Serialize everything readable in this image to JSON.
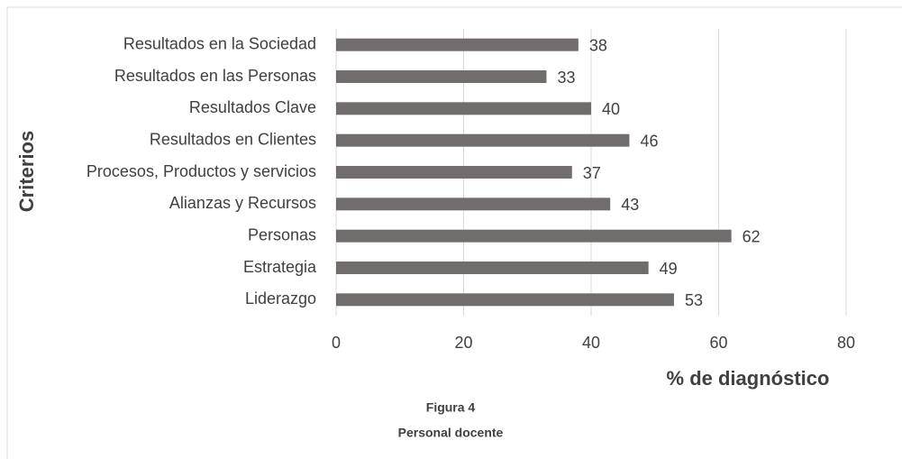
{
  "chart_data": {
    "type": "bar",
    "orientation": "horizontal",
    "categories": [
      "Resultados en la Sociedad",
      "Resultados en las Personas",
      "Resultados Clave",
      "Resultados en Clientes",
      "Procesos, Productos y servicios",
      "Alianzas y Recursos",
      "Personas",
      "Estrategia",
      "Liderazgo"
    ],
    "values": [
      38,
      33,
      40,
      46,
      37,
      43,
      62,
      49,
      53
    ],
    "color": "#716d6d",
    "xlim": [
      0,
      80
    ],
    "xticks": [
      0,
      20,
      40,
      60,
      80
    ],
    "grid": true,
    "x_label": "% de diagnóstico",
    "y_label": "Criterios",
    "caption": [
      "Figura 4",
      "Personal docente"
    ]
  }
}
